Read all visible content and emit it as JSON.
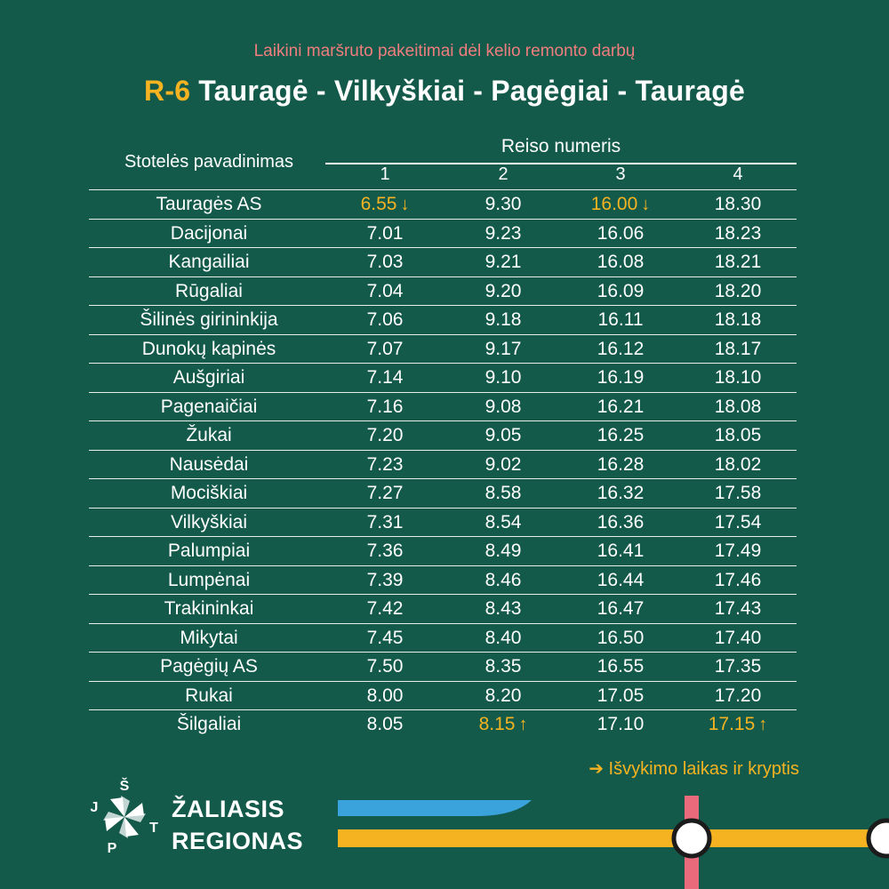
{
  "header": {
    "subtitle": "Laikini maršruto pakeitimai dėl kelio remonto darbų",
    "route_code": "R-6",
    "route_name": "Tauragė - Vilkyškiai - Pagėgiai - Tauragė"
  },
  "table": {
    "stop_header": "Stotelės pavadinimas",
    "trip_header": "Reiso numeris",
    "trip_numbers": [
      "1",
      "2",
      "3",
      "4"
    ],
    "rows": [
      {
        "stop": "Tauragės AS",
        "times": [
          "6.55",
          "9.30",
          "16.00",
          "18.30"
        ]
      },
      {
        "stop": "Dacijonai",
        "times": [
          "7.01",
          "9.23",
          "16.06",
          "18.23"
        ]
      },
      {
        "stop": "Kangailiai",
        "times": [
          "7.03",
          "9.21",
          "16.08",
          "18.21"
        ]
      },
      {
        "stop": "Rūgaliai",
        "times": [
          "7.04",
          "9.20",
          "16.09",
          "18.20"
        ]
      },
      {
        "stop": "Šilinės girininkija",
        "times": [
          "7.06",
          "9.18",
          "16.11",
          "18.18"
        ]
      },
      {
        "stop": "Dunokų kapinės",
        "times": [
          "7.07",
          "9.17",
          "16.12",
          "18.17"
        ]
      },
      {
        "stop": "Aušgiriai",
        "times": [
          "7.14",
          "9.10",
          "16.19",
          "18.10"
        ]
      },
      {
        "stop": "Pagenaičiai",
        "times": [
          "7.16",
          "9.08",
          "16.21",
          "18.08"
        ]
      },
      {
        "stop": "Žukai",
        "times": [
          "7.20",
          "9.05",
          "16.25",
          "18.05"
        ]
      },
      {
        "stop": "Nausėdai",
        "times": [
          "7.23",
          "9.02",
          "16.28",
          "18.02"
        ]
      },
      {
        "stop": "Mociškiai",
        "times": [
          "7.27",
          "8.58",
          "16.32",
          "17.58"
        ]
      },
      {
        "stop": "Vilkyškiai",
        "times": [
          "7.31",
          "8.54",
          "16.36",
          "17.54"
        ]
      },
      {
        "stop": "Palumpiai",
        "times": [
          "7.36",
          "8.49",
          "16.41",
          "17.49"
        ]
      },
      {
        "stop": "Lumpėnai",
        "times": [
          "7.39",
          "8.46",
          "16.44",
          "17.46"
        ]
      },
      {
        "stop": "Trakininkai",
        "times": [
          "7.42",
          "8.43",
          "16.47",
          "17.43"
        ]
      },
      {
        "stop": "Mikytai",
        "times": [
          "7.45",
          "8.40",
          "16.50",
          "17.40"
        ]
      },
      {
        "stop": "Pagėgių AS",
        "times": [
          "7.50",
          "8.35",
          "16.55",
          "17.35"
        ]
      },
      {
        "stop": "Rukai",
        "times": [
          "8.00",
          "8.20",
          "17.05",
          "17.20"
        ]
      },
      {
        "stop": "Šilgaliai",
        "times": [
          "8.05",
          "8.15",
          "17.10",
          "17.15"
        ]
      }
    ],
    "departures": [
      {
        "row": 0,
        "trip": 0,
        "direction": "down"
      },
      {
        "row": 0,
        "trip": 2,
        "direction": "down"
      },
      {
        "row": 18,
        "trip": 1,
        "direction": "up"
      },
      {
        "row": 18,
        "trip": 3,
        "direction": "up"
      }
    ]
  },
  "legend": {
    "arrow_glyph": "➔",
    "text": "Išvykimo laikas ir kryptis"
  },
  "brand": {
    "line1": "ŽALIASIS",
    "line2": "REGIONAS",
    "logo_letters": [
      "J",
      "Š",
      "T",
      "P"
    ]
  },
  "colors": {
    "background": "#135a4b",
    "accent_yellow": "#f5b321",
    "subtitle_red": "#f07d7d",
    "line_blue": "#3aa3dc",
    "line_pink": "#e86a7b",
    "text": "#ffffff"
  },
  "icons": {
    "down": "↓",
    "up": "↑"
  }
}
